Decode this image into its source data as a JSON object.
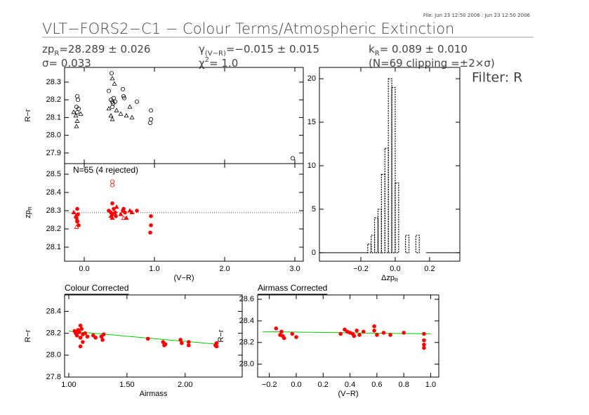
{
  "header": {
    "file": "File: Jun 23 12:50 2006 : Jun 23 12:50 2006",
    "title": "VLT−FORS2−C1 − Colour Terms/Atmospheric Extinction",
    "filter": "Filter: R",
    "stats": [
      {
        "label": "zp",
        "sub": "R",
        "text": "=28.289 ± 0.026"
      },
      {
        "label": "γ",
        "sub": "(V−R)",
        "text": "=−0.015 ± 0.015"
      },
      {
        "label": "k",
        "sub": "R",
        "text": "= 0.089 ± 0.010"
      },
      {
        "label": "σ",
        "text": "= 0.033"
      },
      {
        "label": "χ",
        "sup": "2",
        "text": "=  1.0"
      },
      {
        "label": "(N=69 clipping =±2×σ)"
      }
    ]
  },
  "chart_data": [
    {
      "type": "scatter",
      "ylabel": "R−r",
      "xlim": [
        -0.28,
        3.12
      ],
      "ylim": [
        27.84,
        28.383
      ],
      "yticks": [
        27.9,
        {
          "value": 28,
          "label": "28.0"
        },
        28.1,
        28.2,
        28.3
      ],
      "series": [
        {
          "marker": "circle",
          "filled": false,
          "color": "#000000",
          "x": [
            -0.1,
            -0.09,
            -0.11,
            -0.08,
            -0.1,
            0.35,
            0.38,
            0.4,
            0.41,
            0.42,
            0.39,
            0.44,
            0.4,
            0.55,
            0.56,
            0.57,
            0.75,
            0.95,
            0.95,
            0.94,
            2.97
          ],
          "y": [
            28.22,
            28.2,
            28.16,
            28.15,
            28.13,
            28.25,
            28.2,
            28.19,
            28.18,
            28.21,
            28.35,
            28.19,
            28.16,
            28.26,
            28.22,
            28.21,
            28.19,
            28.14,
            28.09,
            28.07,
            27.87
          ]
        },
        {
          "marker": "triangle",
          "filled": false,
          "color": "#000000",
          "x": [
            -0.15,
            -0.12,
            -0.1,
            -0.11,
            -0.05,
            0.38,
            0.4,
            0.4,
            0.43,
            0.46,
            0.52,
            0.6,
            0.65,
            0.68,
            0.35
          ],
          "y": [
            28.13,
            28.11,
            28.08,
            28.05,
            28.12,
            28.11,
            28.09,
            28.32,
            28.29,
            28.14,
            28.12,
            28.11,
            28.16,
            28.1,
            28.15
          ]
        }
      ]
    },
    {
      "type": "scatter",
      "ylabel": {
        "label": "zp",
        "sub": "R"
      },
      "xlabel": "(V−R)",
      "annotation": "N=65 (4 rejected)",
      "reference_line": 28.289,
      "xlim": [
        -0.28,
        3.12
      ],
      "ylim": [
        28.023,
        28.558
      ],
      "xticks": [
        {
          "value": 0,
          "label": "0.0"
        },
        {
          "value": 1,
          "label": "1.0"
        },
        {
          "value": 2,
          "label": "2.0"
        },
        {
          "value": 3,
          "label": "3.0"
        }
      ],
      "yticks": [
        28.1,
        28.2,
        28.3,
        28.4,
        28.5
      ],
      "series": [
        {
          "marker": "circle",
          "filled": true,
          "color": "#ff0000",
          "x": [
            -0.1,
            -0.09,
            -0.11,
            -0.1,
            -0.08,
            0.35,
            0.38,
            0.4,
            0.42,
            0.44,
            0.45,
            0.4,
            0.55,
            0.56,
            0.58,
            0.75,
            0.95,
            0.95,
            0.94
          ],
          "y": [
            28.31,
            28.28,
            28.26,
            28.24,
            28.22,
            28.3,
            28.29,
            28.28,
            28.31,
            28.29,
            28.27,
            28.34,
            28.3,
            28.31,
            28.29,
            28.3,
            28.27,
            28.22,
            28.18
          ]
        },
        {
          "marker": "triangle",
          "filled": true,
          "color": "#ff0000",
          "x": [
            -0.15,
            -0.12,
            -0.1,
            0.38,
            0.4,
            0.46,
            0.52,
            0.6,
            0.65,
            0.68
          ],
          "y": [
            28.29,
            28.27,
            28.25,
            28.27,
            28.26,
            28.32,
            28.28,
            28.26,
            28.3,
            28.29
          ]
        },
        {
          "marker": "circle",
          "filled": false,
          "color": "#ff0000",
          "x": [
            0.4,
            0.4
          ],
          "y": [
            28.46,
            28.44
          ]
        },
        {
          "marker": "triangle",
          "filled": false,
          "color": "#ff0000",
          "x": [
            -0.11,
            0.56
          ],
          "y": [
            28.21,
            28.26
          ]
        }
      ]
    },
    {
      "type": "histogram",
      "xlabel": {
        "label": "Δzp",
        "sub": "R"
      },
      "xlim": [
        -0.441,
        0.376
      ],
      "ylim": [
        -0.98,
        21.3
      ],
      "xticks": [
        {
          "value": -0.2,
          "label": "−0.2"
        },
        {
          "value": 0,
          "label": "0.0"
        },
        0.2
      ],
      "yticks": [
        0,
        5,
        10,
        15,
        20
      ],
      "bins": [
        -0.16,
        -0.14,
        -0.12,
        -0.1,
        -0.08,
        -0.06,
        -0.04,
        -0.02,
        0.0,
        0.02,
        0.04,
        0.06,
        0.08,
        0.1,
        0.12,
        0.14,
        0.16,
        0.18
      ],
      "counts": [
        1,
        2,
        4,
        5,
        9,
        12,
        20,
        19,
        8,
        0,
        0,
        2,
        0,
        0,
        2,
        0,
        0
      ]
    },
    {
      "type": "scatter",
      "title": "Colour Corrected",
      "xlabel": "Airmass",
      "ylabel": "R−r",
      "xlim": [
        0.964,
        2.49
      ],
      "ylim": [
        27.8,
        28.55
      ],
      "xticks": [
        {
          "value": 1,
          "label": "1.00"
        },
        {
          "value": 1.5,
          "label": "1.50"
        },
        {
          "value": 2,
          "label": "2.00"
        }
      ],
      "yticks": [
        27.8,
        {
          "value": 28,
          "label": "28.0"
        },
        28.2,
        28.4
      ],
      "fit": {
        "color": "#00cc00",
        "x": [
          1.0,
          2.28
        ],
        "y": [
          28.22,
          28.1
        ]
      },
      "series": [
        {
          "marker": "circle",
          "filled": true,
          "color": "#ff0000",
          "x": [
            1.05,
            1.06,
            1.07,
            1.08,
            1.09,
            1.1,
            1.1,
            1.11,
            1.12,
            1.12,
            1.14,
            1.16,
            1.21,
            1.23,
            1.28,
            1.29,
            1.3,
            1.1,
            1.68,
            1.81,
            1.82,
            1.83,
            1.96,
            1.97,
            2.03,
            2.03,
            2.27,
            2.26,
            2.27
          ],
          "y": [
            28.22,
            28.2,
            28.18,
            28.23,
            28.21,
            28.27,
            28.16,
            28.24,
            28.12,
            28.19,
            28.2,
            28.17,
            28.18,
            28.16,
            28.17,
            28.14,
            28.19,
            28.08,
            28.15,
            28.12,
            28.09,
            28.1,
            28.14,
            28.11,
            28.12,
            28.09,
            28.11,
            28.09,
            28.08
          ]
        }
      ]
    },
    {
      "type": "scatter",
      "title": "Airmass Corrected",
      "xlabel": "(V−R)",
      "ylabel": "R−r",
      "xlim": [
        -0.287,
        1.06
      ],
      "ylim": [
        27.88,
        28.64
      ],
      "xticks": [
        {
          "value": -0.2,
          "label": "−0.2"
        },
        {
          "value": 0,
          "label": "0.0"
        },
        0.2,
        0.4,
        0.6,
        0.8,
        {
          "value": 1,
          "label": "1.0"
        }
      ],
      "yticks": [
        {
          "value": 28,
          "label": "28.0"
        },
        28.2,
        28.4,
        28.6
      ],
      "fit": {
        "color": "#00cc00",
        "x": [
          -0.25,
          1.0
        ],
        "y": [
          28.3,
          28.28
        ]
      },
      "series": [
        {
          "marker": "circle",
          "filled": true,
          "color": "#ff0000",
          "x": [
            -0.15,
            -0.11,
            -0.1,
            -0.09,
            -0.12,
            0.0,
            -0.03,
            0.33,
            0.36,
            0.38,
            0.4,
            0.42,
            0.43,
            0.45,
            0.47,
            0.5,
            0.58,
            0.58,
            0.6,
            0.65,
            0.7,
            0.8,
            0.95,
            0.95,
            0.95,
            0.95
          ],
          "y": [
            28.33,
            28.3,
            28.26,
            28.24,
            28.27,
            28.25,
            28.28,
            28.28,
            28.32,
            28.3,
            28.29,
            28.28,
            28.26,
            28.31,
            28.27,
            28.3,
            28.35,
            28.31,
            28.27,
            28.29,
            28.27,
            28.29,
            28.28,
            28.22,
            28.18,
            28.15
          ]
        }
      ]
    }
  ]
}
